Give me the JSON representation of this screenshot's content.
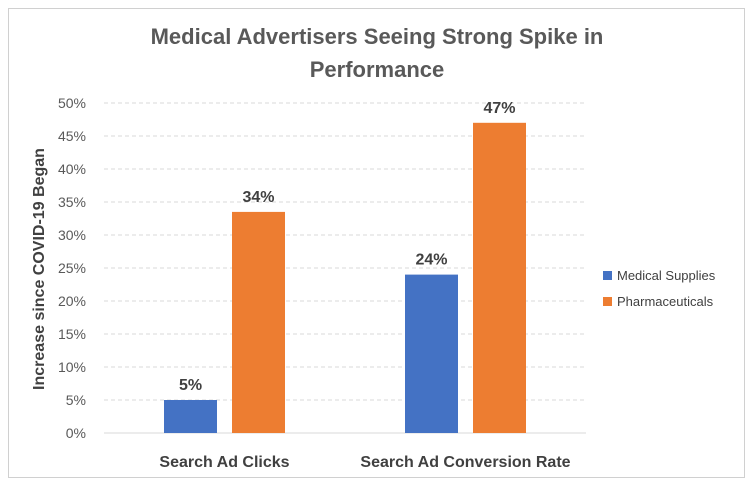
{
  "chart_data": {
    "type": "bar",
    "title": "Medical Advertisers Seeing Strong Spike in Performance",
    "title_lines": [
      "Medical Advertisers Seeing Strong Spike in",
      "Performance"
    ],
    "ylabel": "Increase since COVID-19 Began",
    "xlabel": "",
    "categories": [
      "Search Ad Clicks",
      "Search Ad Conversion Rate"
    ],
    "series": [
      {
        "name": "Medical Supplies",
        "values": [
          5,
          24
        ],
        "labels": [
          "5%",
          "24%"
        ],
        "color": "#4472C4"
      },
      {
        "name": "Pharmaceuticals",
        "values": [
          33.5,
          47
        ],
        "labels": [
          "34%",
          "47%"
        ],
        "color": "#ED7D31"
      }
    ],
    "ylim": [
      0,
      50
    ],
    "yticks": [
      0,
      5,
      10,
      15,
      20,
      25,
      30,
      35,
      40,
      45,
      50
    ],
    "ytick_labels": [
      "0%",
      "5%",
      "10%",
      "15%",
      "20%",
      "25%",
      "30%",
      "35%",
      "40%",
      "45%",
      "50%"
    ],
    "grid": true,
    "legend_position": "right"
  }
}
